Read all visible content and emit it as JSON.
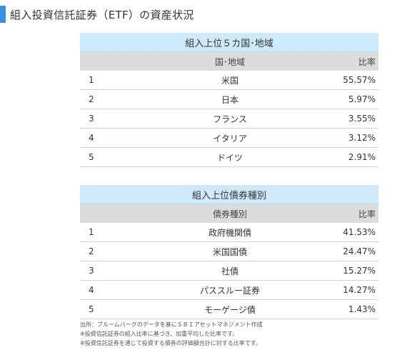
{
  "page": {
    "title": "組入投資信託証券（ETF）の資産状況"
  },
  "countries": {
    "caption": "組入上位５カ国･地域",
    "col_name": "国･地域",
    "col_value": "比率",
    "rows": [
      {
        "rank": "1",
        "name": "米国",
        "value": "55.57%"
      },
      {
        "rank": "2",
        "name": "日本",
        "value": "5.97%"
      },
      {
        "rank": "3",
        "name": "フランス",
        "value": "3.55%"
      },
      {
        "rank": "4",
        "name": "イタリア",
        "value": "3.12%"
      },
      {
        "rank": "5",
        "name": "ドイツ",
        "value": "2.91%"
      }
    ]
  },
  "bond_types": {
    "caption": "組入上位債券種別",
    "col_name": "債券種別",
    "col_value": "比率",
    "rows": [
      {
        "rank": "1",
        "name": "政府機関債",
        "value": "41.53%"
      },
      {
        "rank": "2",
        "name": "米国国債",
        "value": "24.47%"
      },
      {
        "rank": "3",
        "name": "社債",
        "value": "15.27%"
      },
      {
        "rank": "4",
        "name": "パススルー証券",
        "value": "14.27%"
      },
      {
        "rank": "5",
        "name": "モーゲージ債",
        "value": "1.43%"
      }
    ]
  },
  "notes": [
    "出所：ブルームバーグのデータを基にＳＢＩアセットマネジメント作成",
    "※投資信託証券の組入比率に基づき、加重平均した比率です。",
    "※投資信託証券を通じて投資する債券の評価額合計に対する比率です。"
  ]
}
